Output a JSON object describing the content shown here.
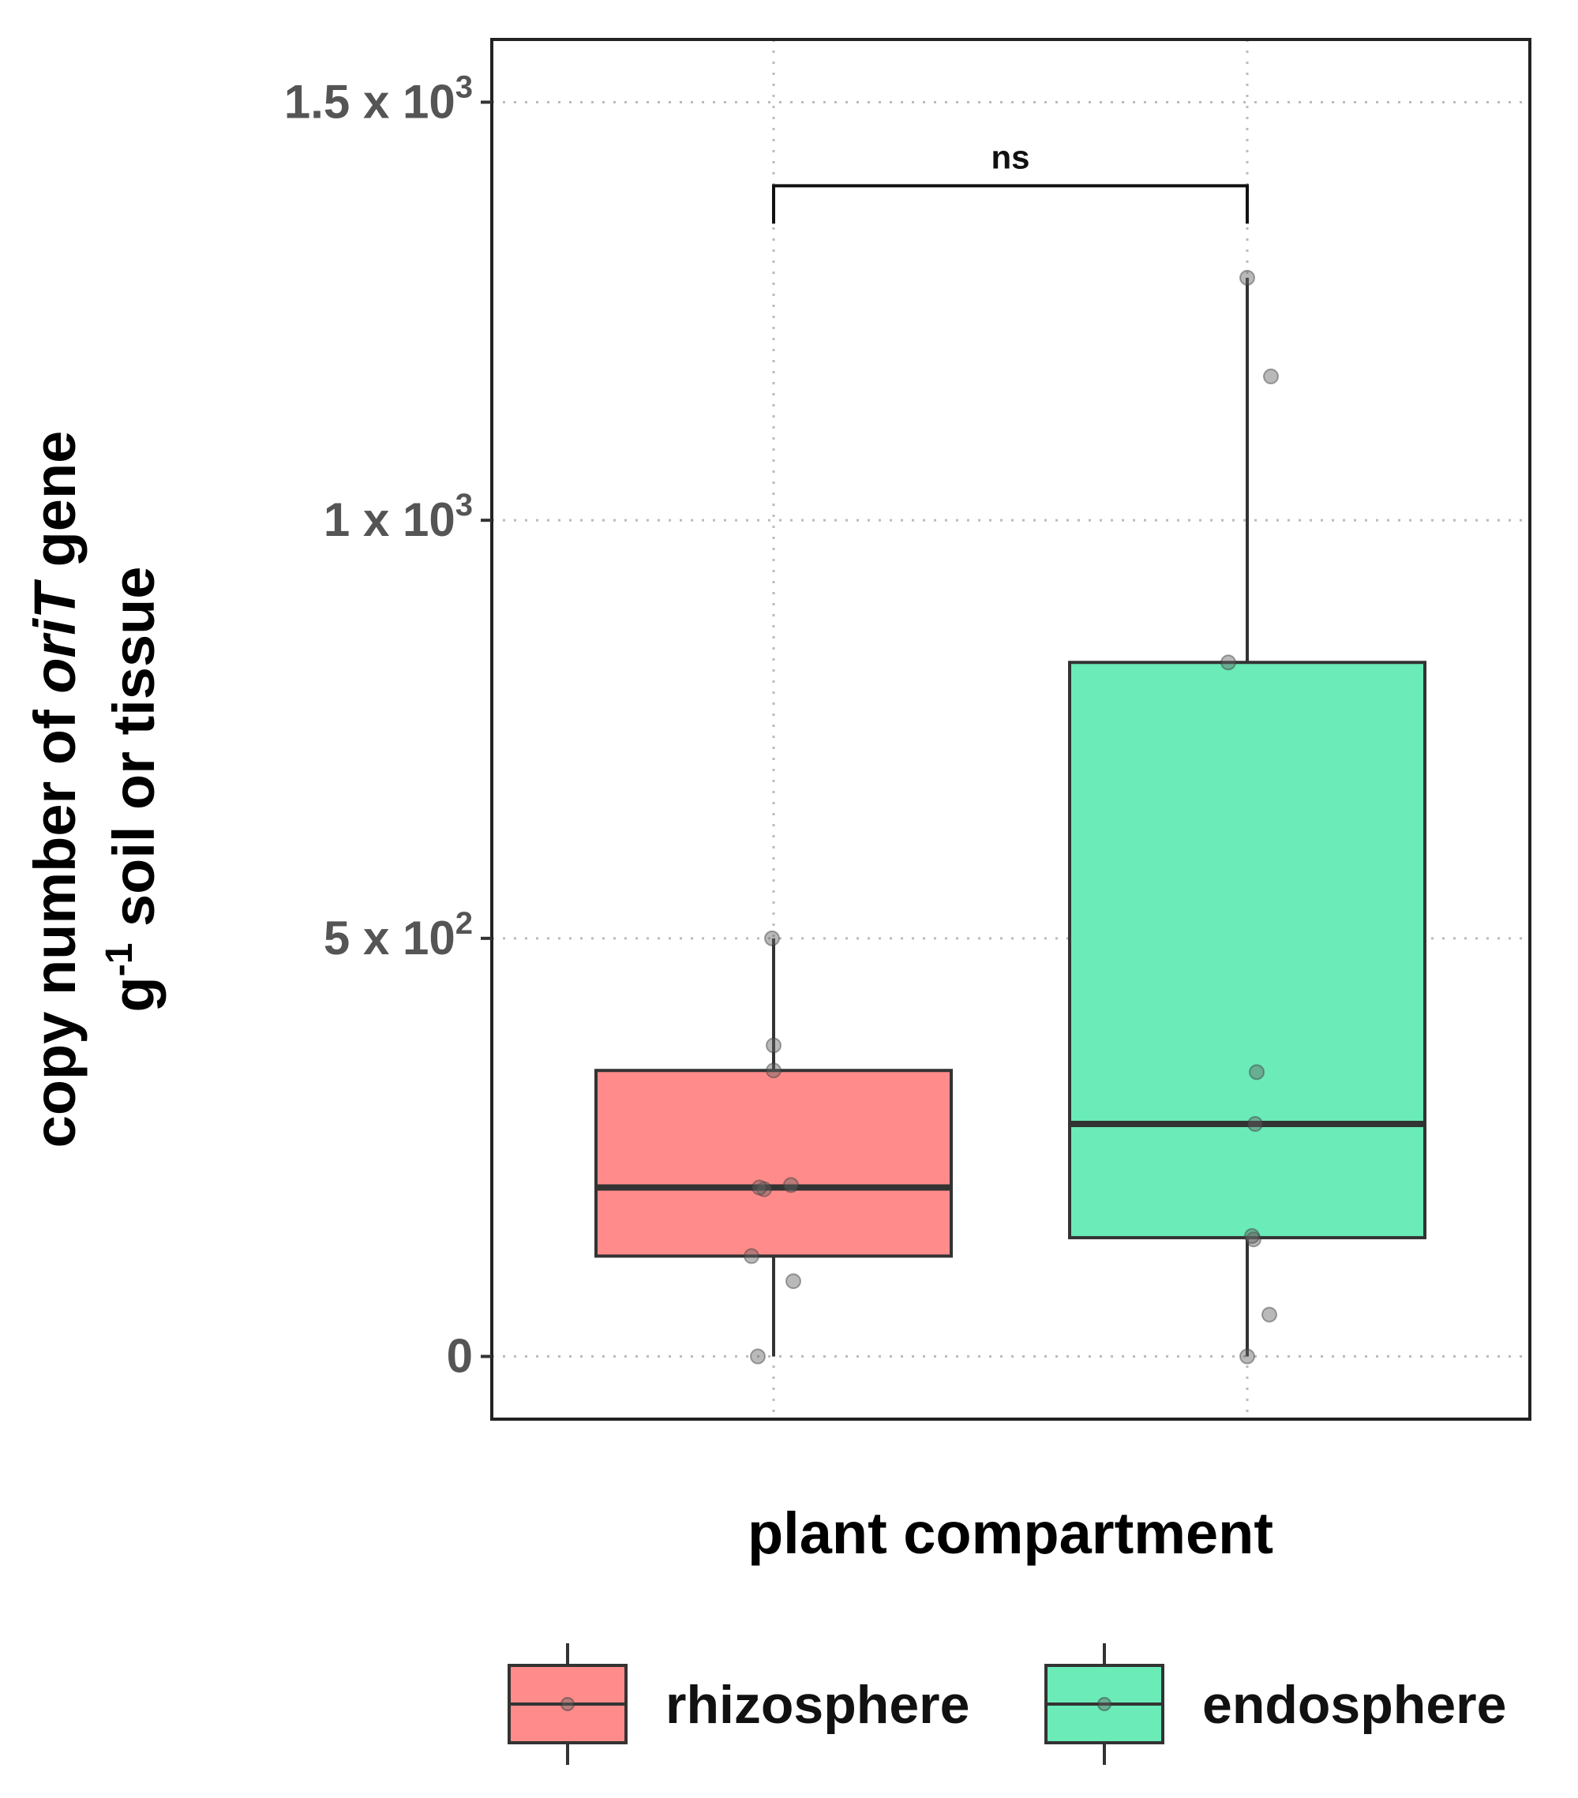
{
  "chart_data": {
    "type": "box",
    "x_label": "plant compartment",
    "y_label": {
      "line1_prefix": "copy number of ",
      "line1_italic": "oriT",
      "line1_suffix": " gene",
      "line2_g": "g",
      "line2_exp": "-1",
      "line2_rest": " soil or tissue"
    },
    "ylim": [
      -75,
      1575
    ],
    "y_ticks": [
      {
        "value": 0,
        "base": "0",
        "exp": ""
      },
      {
        "value": 500,
        "base": "5 x 10",
        "exp": "2"
      },
      {
        "value": 1000,
        "base": "1 x 10",
        "exp": "3"
      },
      {
        "value": 1500,
        "base": "1.5 x 10",
        "exp": "3"
      }
    ],
    "categories": [
      "rhizosphere",
      "endosphere"
    ],
    "boxes": [
      {
        "name": "rhizosphere",
        "color": "#F8766D",
        "fill": "#FF8C8A",
        "whisker_low": 0,
        "q1": 120,
        "median": 202,
        "q3": 342,
        "whisker_high": 500,
        "points": [
          0,
          90,
          120,
          200,
          202,
          205,
          342,
          372,
          500
        ]
      },
      {
        "name": "endosphere",
        "color": "#00C08B",
        "fill": "#6AEBB8",
        "whisker_low": 0,
        "q1": 142,
        "median": 278,
        "q3": 830,
        "whisker_high": 1290,
        "points": [
          0,
          50,
          140,
          144,
          278,
          340,
          830,
          1172,
          1290
        ]
      }
    ],
    "significance": {
      "label": "ns",
      "value": 1400
    },
    "grid": true,
    "legend_position": "bottom"
  }
}
